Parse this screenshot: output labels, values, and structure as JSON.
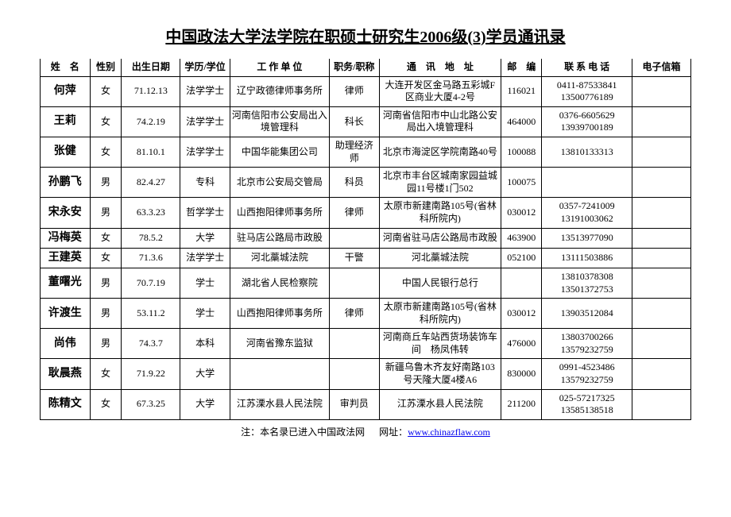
{
  "title": "中国政法大学法学院在职硕士研究生2006级(3)学员通讯录",
  "headers": {
    "name": "姓　名",
    "gender": "性别",
    "birth": "出生日期",
    "edu": "学历/学位",
    "work": "工 作 单 位",
    "pos": "职务/职称",
    "addr": "通　讯　地　址",
    "post": "邮　编",
    "phone": "联 系 电 话",
    "email": "电子信箱"
  },
  "rows": [
    {
      "name": "何萍",
      "gender": "女",
      "birth": "71.12.13",
      "edu": "法学学士",
      "work": "辽宁政德律师事务所",
      "pos": "律师",
      "addr": "大连开发区金马路五彩城F区商业大厦4-2号",
      "post": "116021",
      "phone": "0411-87533841 13500776189",
      "email": ""
    },
    {
      "name": "王莉",
      "gender": "女",
      "birth": "74.2.19",
      "edu": "法学学士",
      "work": "河南信阳市公安局出入境管理科",
      "pos": "科长",
      "addr": "河南省信阳市中山北路公安局出入境管理科",
      "post": "464000",
      "phone": "0376-6605629 13939700189",
      "email": ""
    },
    {
      "name": "张健",
      "gender": "女",
      "birth": "81.10.1",
      "edu": "法学学士",
      "work": "中国华能集团公司",
      "pos": "助理经济师",
      "addr": "北京市海淀区学院南路40号",
      "post": "100088",
      "phone": "13810133313",
      "email": ""
    },
    {
      "name": "孙鹏飞",
      "gender": "男",
      "birth": "82.4.27",
      "edu": "专科",
      "work": "北京市公安局交管局",
      "pos": "科员",
      "addr": "北京市丰台区城南家园益城园11号楼1门502",
      "post": "100075",
      "phone": "",
      "email": ""
    },
    {
      "name": "宋永安",
      "gender": "男",
      "birth": "63.3.23",
      "edu": "哲学学士",
      "work": "山西抱阳律师事务所",
      "pos": "律师",
      "addr": "太原市新建南路105号(省林科所院内)",
      "post": "030012",
      "phone": "0357-7241009 13191003062",
      "email": ""
    },
    {
      "name": "冯梅英",
      "gender": "女",
      "birth": "78.5.2",
      "edu": "大学",
      "work": "驻马店公路局市政股",
      "pos": "",
      "addr": "河南省驻马店公路局市政股",
      "post": "463900",
      "phone": "13513977090",
      "email": ""
    },
    {
      "name": "王建英",
      "gender": "女",
      "birth": "71.3.6",
      "edu": "法学学士",
      "work": "河北藁城法院",
      "pos": "干警",
      "addr": "河北藁城法院",
      "post": "052100",
      "phone": "13111503886",
      "email": ""
    },
    {
      "name": "董曙光",
      "gender": "男",
      "birth": "70.7.19",
      "edu": "学士",
      "work": "湖北省人民检察院",
      "pos": "",
      "addr": "中国人民银行总行",
      "post": "",
      "phone": "13810378308 13501372753",
      "email": ""
    },
    {
      "name": "许渡生",
      "gender": "男",
      "birth": "53.11.2",
      "edu": "学士",
      "work": "山西抱阳律师事务所",
      "pos": "律师",
      "addr": "太原市新建南路105号(省林科所院内)",
      "post": "030012",
      "phone": "13903512084",
      "email": ""
    },
    {
      "name": "尚伟",
      "gender": "男",
      "birth": "74.3.7",
      "edu": "本科",
      "work": "河南省豫东监狱",
      "pos": "",
      "addr": "河南商丘车站西货场装饰车间　杨凤伟转",
      "post": "476000",
      "phone": "13803700266 13579232759",
      "email": ""
    },
    {
      "name": "耿晨燕",
      "gender": "女",
      "birth": "71.9.22",
      "edu": "大学",
      "work": "",
      "pos": "",
      "addr": "新疆乌鲁木齐友好南路103号天隆大厦4楼A6",
      "post": "830000",
      "phone": "0991-4523486 13579232759",
      "email": ""
    },
    {
      "name": "陈精文",
      "gender": "女",
      "birth": "67.3.25",
      "edu": "大学",
      "work": "江苏溧水县人民法院",
      "pos": "审判员",
      "addr": "江苏溧水县人民法院",
      "post": "211200",
      "phone": "025-57217325 13585138518",
      "email": ""
    }
  ],
  "footer": {
    "note": "注：本名录已进入中国政法网",
    "linklabel": "网址：",
    "url": "www.chinazflaw.com"
  }
}
